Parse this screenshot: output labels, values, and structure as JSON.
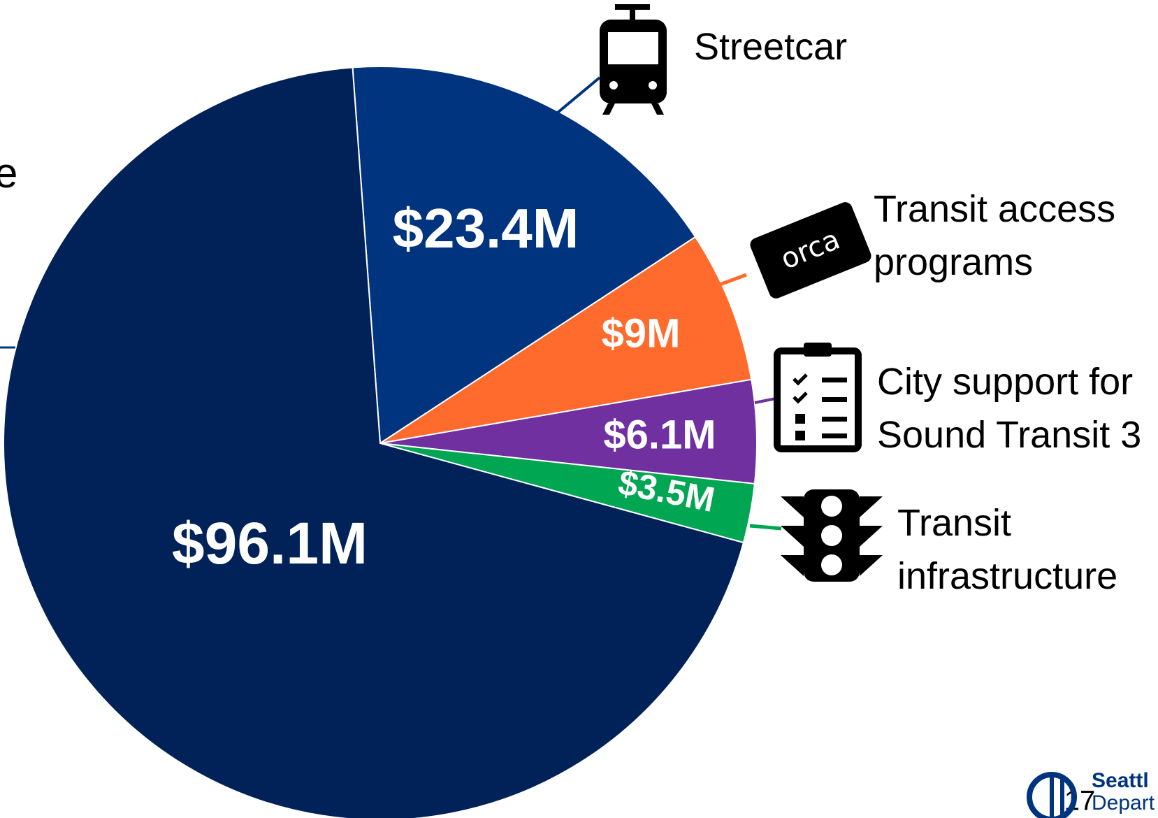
{
  "chart_data": {
    "type": "pie",
    "categories": [
      "Streetcar",
      "Transit access programs",
      "City support for Sound Transit 3",
      "Transit infrastructure",
      null
    ],
    "values": [
      23.4,
      9,
      6.1,
      3.5,
      96.1
    ],
    "value_labels": [
      "$23.4M",
      "$9M",
      "$6.1M",
      "$3.5M",
      "$96.1M"
    ],
    "colors": [
      "#00347f",
      "#ff6b2c",
      "#7030a0",
      "#00a651",
      "#012258"
    ]
  },
  "fragment": "e",
  "footer": {
    "page_number": "17",
    "logo_lines": [
      "Seattl",
      "Depart"
    ]
  }
}
